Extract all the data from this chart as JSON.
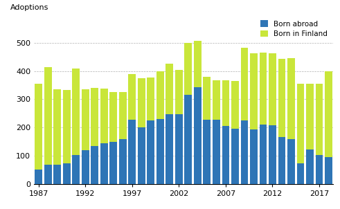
{
  "years": [
    1987,
    1988,
    1989,
    1990,
    1991,
    1992,
    1993,
    1994,
    1995,
    1996,
    1997,
    1998,
    1999,
    2000,
    2001,
    2002,
    2003,
    2004,
    2005,
    2006,
    2007,
    2008,
    2009,
    2010,
    2011,
    2012,
    2013,
    2014,
    2015,
    2016,
    2017,
    2018
  ],
  "born_abroad": [
    52,
    68,
    68,
    72,
    102,
    120,
    135,
    143,
    148,
    160,
    228,
    200,
    225,
    230,
    248,
    248,
    315,
    343,
    228,
    228,
    205,
    195,
    225,
    192,
    210,
    208,
    165,
    158,
    72,
    123,
    102,
    95
  ],
  "born_in_finland": [
    303,
    345,
    268,
    262,
    308,
    215,
    205,
    195,
    178,
    165,
    162,
    175,
    152,
    170,
    178,
    155,
    185,
    165,
    152,
    140,
    162,
    170,
    258,
    272,
    255,
    255,
    278,
    288,
    283,
    232,
    252,
    305
  ],
  "color_abroad": "#2E75B6",
  "color_finland": "#C9E63A",
  "ylabel": "Adoptions",
  "ylim": [
    0,
    600
  ],
  "yticks": [
    0,
    100,
    200,
    300,
    400,
    500,
    600
  ],
  "xticks": [
    1987,
    1992,
    1997,
    2002,
    2007,
    2012,
    2017
  ],
  "legend_abroad": "Born abroad",
  "legend_finland": "Born in Finland",
  "grid_color": "#b0b0b0",
  "background_color": "#ffffff"
}
